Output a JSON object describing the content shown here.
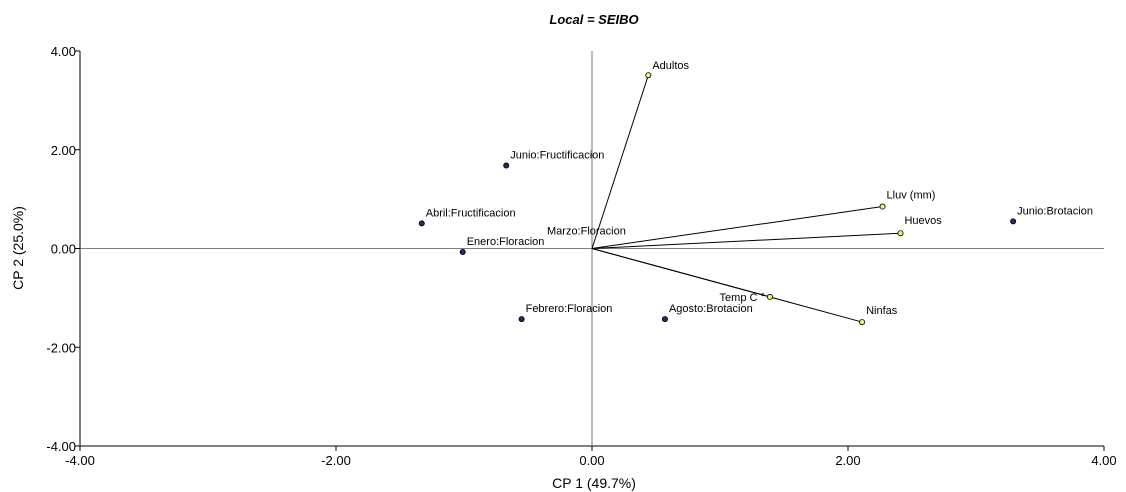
{
  "chart_data": {
    "type": "scatter",
    "title": "Local = SEIBO",
    "xlabel": "CP 1 (49.7%)",
    "ylabel": "CP 2 (25.0%)",
    "xlim": [
      -4,
      4
    ],
    "ylim": [
      -4,
      4
    ],
    "x_ticks": [
      -4,
      -2,
      0,
      2,
      4
    ],
    "y_ticks": [
      -4,
      -2,
      0,
      2,
      4
    ],
    "x_tick_labels": [
      "-4.00",
      "-2.00",
      "0.00",
      "2.00",
      "4.00"
    ],
    "y_tick_labels": [
      "-4.00",
      "-2.00",
      "0.00",
      "2.00",
      "4.00"
    ],
    "observations": {
      "color": "#1f2a6b",
      "points": [
        {
          "label": "Junio:Fructificacion",
          "x": -0.67,
          "y": 1.68
        },
        {
          "label": "Abril:Fructificacion",
          "x": -1.33,
          "y": 0.51
        },
        {
          "label": "Enero:Floracion",
          "x": -1.01,
          "y": -0.07
        },
        {
          "label": "Marzo:Floracion",
          "x": 0.0,
          "y": 0.0
        },
        {
          "label": "Febrero:Floracion",
          "x": -0.55,
          "y": -1.43
        },
        {
          "label": "Agosto:Brotacion",
          "x": 0.57,
          "y": -1.43
        },
        {
          "label": "Junio:Brotacion",
          "x": 3.29,
          "y": 0.55
        }
      ]
    },
    "variables": {
      "color": "#f0f07a",
      "points": [
        {
          "label": "Adultos",
          "x": 0.44,
          "y": 3.51
        },
        {
          "label": "Lluv (mm)",
          "x": 2.27,
          "y": 0.85
        },
        {
          "label": "Huevos",
          "x": 2.41,
          "y": 0.31
        },
        {
          "label": "Temp C °",
          "x": 1.39,
          "y": -0.98
        },
        {
          "label": "Ninfas",
          "x": 2.11,
          "y": -1.49
        }
      ]
    },
    "reference_lines": {
      "x": 0,
      "y": 0
    },
    "grid": false,
    "legend": "none"
  }
}
